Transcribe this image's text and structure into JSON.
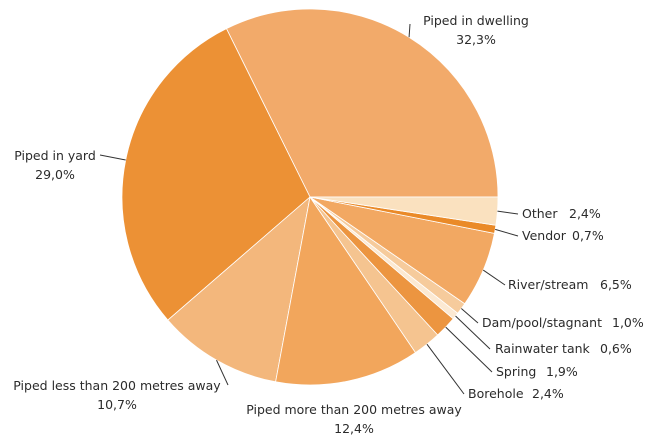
{
  "chart_data": {
    "type": "pie",
    "start_angle_deg": 0,
    "direction": "counterclockwise",
    "slices": [
      {
        "label": "Piped in dwelling",
        "value": 32.3,
        "value_text": "32,3%",
        "color": "#F2AA6A"
      },
      {
        "label": "Piped in yard",
        "value": 29.0,
        "value_text": "29,0%",
        "color": "#EC9135"
      },
      {
        "label": "Piped less than 200 metres away",
        "value": 10.7,
        "value_text": "10,7%",
        "color": "#F3B77C"
      },
      {
        "label": "Piped more than 200 metres away",
        "value": 12.4,
        "value_text": "12,4%",
        "color": "#F2A65C"
      },
      {
        "label": "Borehole",
        "value": 2.4,
        "value_text": "2,4%",
        "color": "#F5C490"
      },
      {
        "label": "Spring",
        "value": 1.9,
        "value_text": "1,9%",
        "color": "#EC9540"
      },
      {
        "label": "Rainwater tank",
        "value": 0.6,
        "value_text": "0,6%",
        "color": "#FCE9D2"
      },
      {
        "label": "Dam/pool/stagnant",
        "value": 1.0,
        "value_text": "1,0%",
        "color": "#F6CB9C"
      },
      {
        "label": "River/stream",
        "value": 6.5,
        "value_text": "6,5%",
        "color": "#F2A862"
      },
      {
        "label": "Vendor",
        "value": 0.7,
        "value_text": "0,7%",
        "color": "#EA8A28"
      },
      {
        "label": "Other",
        "value": 2.4,
        "value_text": "2,4%",
        "color": "#FAE1BF"
      }
    ]
  }
}
